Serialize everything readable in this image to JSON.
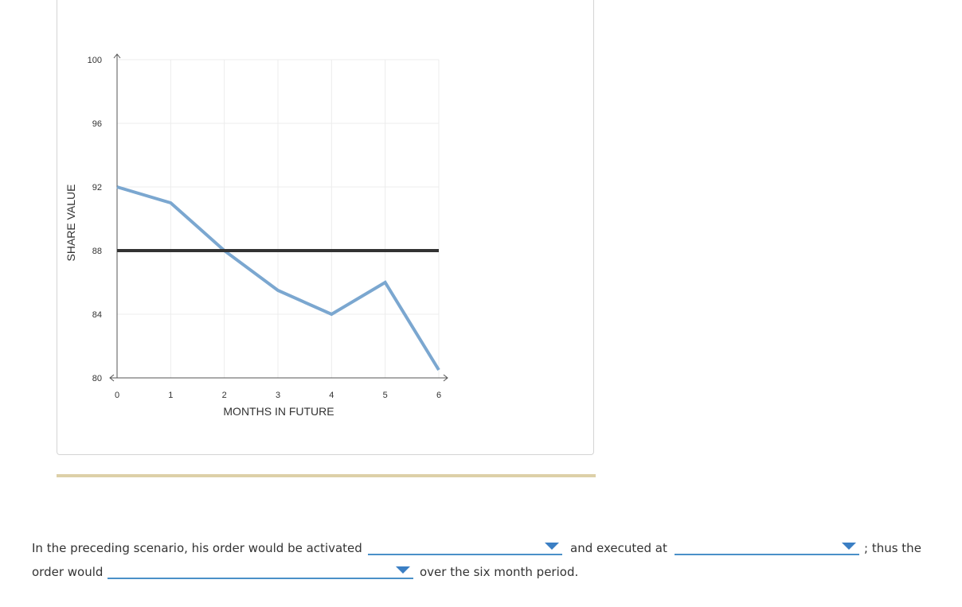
{
  "chart_data": {
    "type": "line",
    "xlabel": "MONTHS IN FUTURE",
    "ylabel": "SHARE VALUE",
    "x_ticks": [
      0,
      1,
      2,
      3,
      4,
      5,
      6
    ],
    "y_ticks": [
      80,
      84,
      88,
      92,
      96,
      100
    ],
    "xlim": [
      0,
      6
    ],
    "ylim": [
      80,
      100
    ],
    "grid": true,
    "series": [
      {
        "x": [
          0,
          1,
          2,
          3,
          4,
          5,
          6
        ],
        "values": [
          92,
          91,
          88,
          85.5,
          84,
          86,
          80.5
        ],
        "color": "#7ba7d0"
      },
      {
        "x": [
          0,
          6
        ],
        "values": [
          88,
          88
        ],
        "color": "#333333"
      }
    ]
  },
  "question": {
    "part1": "In the preceding scenario, his order would be activated",
    "part2": "and executed at",
    "part3": "; thus the",
    "part4": "order would",
    "part5": "over the six month period."
  },
  "dropdowns": {
    "activated": "",
    "executed_at": "",
    "order_would": ""
  }
}
